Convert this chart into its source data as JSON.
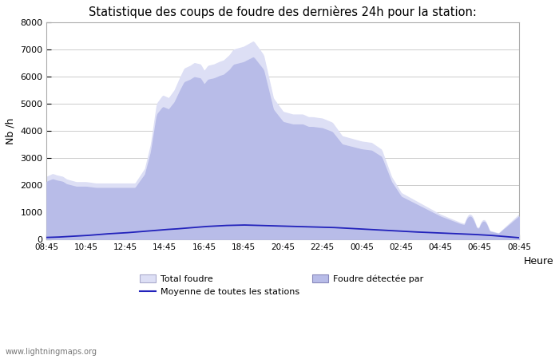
{
  "title": "Statistique des coups de foudre des dernières 24h pour la station:",
  "ylabel": "Nb /h",
  "xlabel": "Heure",
  "watermark": "www.lightningmaps.org",
  "ylim": [
    0,
    8000
  ],
  "yticks": [
    0,
    1000,
    2000,
    3000,
    4000,
    5000,
    6000,
    7000,
    8000
  ],
  "xtick_labels": [
    "08:45",
    "10:45",
    "12:45",
    "14:45",
    "16:45",
    "18:45",
    "20:45",
    "22:45",
    "00:45",
    "02:45",
    "04:45",
    "06:45",
    "08:45"
  ],
  "legend_labels": [
    "Total foudre",
    "Moyenne de toutes les stations",
    "Foudre détectée par"
  ],
  "fill_color_total": "#dddff5",
  "fill_color_detected": "#b8bce8",
  "line_color_mean": "#2222bb",
  "background_color": "#ffffff",
  "total_ctrl_x": [
    0,
    0.3,
    0.5,
    0.8,
    1.0,
    1.5,
    2.0,
    2.5,
    3.0,
    3.5,
    4.0,
    4.5,
    5.0,
    5.3,
    5.6,
    5.9,
    6.2,
    6.5,
    6.8,
    7.0,
    7.3,
    7.5,
    7.8,
    8.0,
    8.2,
    8.5,
    8.8,
    9.0,
    9.3,
    9.5,
    10.0,
    10.5,
    11.0,
    11.5,
    12.0,
    12.5,
    13.0,
    13.3,
    13.5,
    14.0,
    14.5,
    15.0,
    15.5,
    16.0,
    16.5,
    17.0,
    17.5,
    18.0,
    18.5,
    19.0,
    19.5,
    20.0,
    20.5,
    21.0,
    21.5,
    22.0,
    22.5,
    23.0,
    23.5,
    24.0
  ],
  "total_ctrl_y": [
    2300,
    2400,
    2350,
    2300,
    2200,
    2100,
    2100,
    2050,
    2050,
    2050,
    2050,
    2050,
    2600,
    3500,
    5000,
    5300,
    5200,
    5500,
    6000,
    6300,
    6400,
    6500,
    6450,
    6200,
    6400,
    6450,
    6550,
    6600,
    6800,
    7000,
    7100,
    7300,
    6800,
    5200,
    4700,
    4600,
    4600,
    4500,
    4500,
    4450,
    4300,
    3800,
    3700,
    3600,
    3550,
    3300,
    2300,
    1700,
    1500,
    1300,
    1100,
    900,
    750,
    600,
    500,
    400,
    300,
    200,
    150,
    100
  ],
  "mean_ctrl_x": [
    0,
    0.5,
    1.0,
    1.5,
    2.0,
    2.5,
    3.0,
    3.5,
    4.0,
    4.5,
    5.0,
    5.5,
    6.0,
    6.5,
    7.0,
    7.5,
    8.0,
    8.5,
    9.0,
    9.5,
    10.0,
    10.5,
    11.0,
    11.5,
    12.0,
    12.5,
    13.0,
    13.5,
    14.0,
    14.5,
    15.0,
    15.5,
    16.0,
    16.5,
    17.0,
    17.5,
    18.0,
    18.5,
    19.0,
    19.5,
    20.0,
    20.5,
    21.0,
    21.5,
    22.0,
    22.5,
    23.0,
    23.5,
    24.0
  ],
  "mean_ctrl_y": [
    60,
    70,
    90,
    110,
    130,
    160,
    190,
    210,
    230,
    260,
    290,
    320,
    350,
    370,
    400,
    430,
    460,
    480,
    500,
    510,
    520,
    510,
    500,
    490,
    480,
    470,
    460,
    450,
    440,
    430,
    410,
    390,
    370,
    350,
    330,
    310,
    290,
    270,
    255,
    240,
    225,
    210,
    195,
    180,
    160,
    140,
    110,
    80,
    50
  ]
}
